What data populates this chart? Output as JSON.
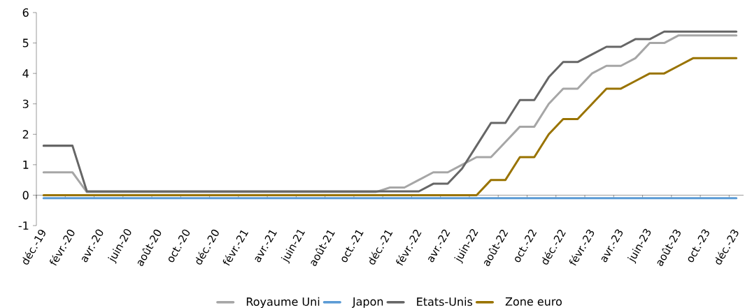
{
  "chart_data": {
    "type": "line",
    "categories": [
      "déc.-19",
      null,
      "févr.-20",
      null,
      "avr.-20",
      null,
      "juin-20",
      null,
      "août-20",
      null,
      "oct.-20",
      null,
      "déc.-20",
      null,
      "févr.-21",
      null,
      "avr.-21",
      null,
      "juin-21",
      null,
      "août-21",
      null,
      "oct.-21",
      null,
      "déc.-21",
      null,
      "févr.-22",
      null,
      "avr.-22",
      null,
      "juin-22",
      null,
      "août-22",
      null,
      "oct.-22",
      null,
      "déc.-22",
      null,
      "févr.-23",
      null,
      "avr.-23",
      null,
      "juin-23",
      null,
      "août-23",
      null,
      "oct.-23",
      null,
      "déc.-23"
    ],
    "series": [
      {
        "name": "Royaume Uni",
        "color": "#a6a6a6",
        "values": [
          0.75,
          0.75,
          0.75,
          0.1,
          0.1,
          0.1,
          0.1,
          0.1,
          0.1,
          0.1,
          0.1,
          0.1,
          0.1,
          0.1,
          0.1,
          0.1,
          0.1,
          0.1,
          0.1,
          0.1,
          0.1,
          0.1,
          0.1,
          0.1,
          0.25,
          0.25,
          0.5,
          0.75,
          0.75,
          1.0,
          1.25,
          1.25,
          1.75,
          2.25,
          2.25,
          3.0,
          3.5,
          3.5,
          4.0,
          4.25,
          4.25,
          4.5,
          5.0,
          5.0,
          5.25,
          5.25,
          5.25,
          5.25,
          5.25
        ]
      },
      {
        "name": "Japon",
        "color": "#5b9bd5",
        "values": [
          -0.1,
          -0.1,
          -0.1,
          -0.1,
          -0.1,
          -0.1,
          -0.1,
          -0.1,
          -0.1,
          -0.1,
          -0.1,
          -0.1,
          -0.1,
          -0.1,
          -0.1,
          -0.1,
          -0.1,
          -0.1,
          -0.1,
          -0.1,
          -0.1,
          -0.1,
          -0.1,
          -0.1,
          -0.1,
          -0.1,
          -0.1,
          -0.1,
          -0.1,
          -0.1,
          -0.1,
          -0.1,
          -0.1,
          -0.1,
          -0.1,
          -0.1,
          -0.1,
          -0.1,
          -0.1,
          -0.1,
          -0.1,
          -0.1,
          -0.1,
          -0.1,
          -0.1,
          -0.1,
          -0.1,
          -0.1,
          -0.1
        ]
      },
      {
        "name": "Etats-Unis",
        "color": "#666666",
        "values": [
          1.625,
          1.625,
          1.625,
          0.125,
          0.125,
          0.125,
          0.125,
          0.125,
          0.125,
          0.125,
          0.125,
          0.125,
          0.125,
          0.125,
          0.125,
          0.125,
          0.125,
          0.125,
          0.125,
          0.125,
          0.125,
          0.125,
          0.125,
          0.125,
          0.125,
          0.125,
          0.125,
          0.375,
          0.375,
          0.875,
          1.625,
          2.375,
          2.375,
          3.125,
          3.125,
          3.875,
          4.375,
          4.375,
          4.625,
          4.875,
          4.875,
          5.125,
          5.125,
          5.375,
          5.375,
          5.375,
          5.375,
          5.375,
          5.375
        ]
      },
      {
        "name": "Zone euro",
        "color": "#997300",
        "values": [
          0,
          0,
          0,
          0,
          0,
          0,
          0,
          0,
          0,
          0,
          0,
          0,
          0,
          0,
          0,
          0,
          0,
          0,
          0,
          0,
          0,
          0,
          0,
          0,
          0,
          0,
          0,
          0,
          0,
          0,
          0,
          0.5,
          0.5,
          1.25,
          1.25,
          2.0,
          2.5,
          2.5,
          3.0,
          3.5,
          3.5,
          3.75,
          4.0,
          4.0,
          4.25,
          4.5,
          4.5,
          4.5,
          4.5
        ]
      }
    ],
    "ylim": [
      -1,
      6
    ],
    "yticks": [
      -1,
      0,
      1,
      2,
      3,
      4,
      5,
      6
    ],
    "legend": "bottom",
    "marker": "none",
    "line_style": "solid"
  }
}
